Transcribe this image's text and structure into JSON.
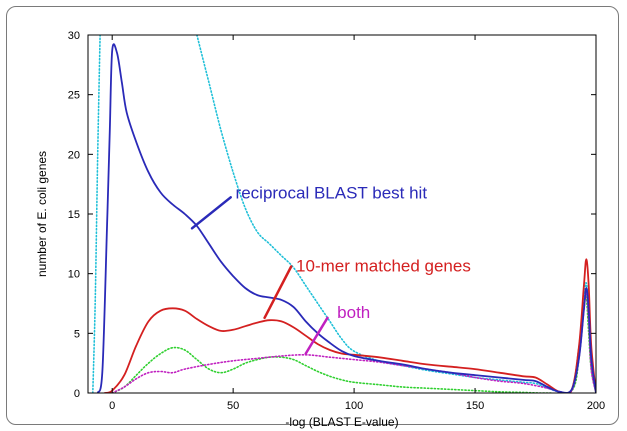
{
  "chart_data": {
    "type": "line",
    "title": "",
    "xlabel": "-log (BLAST E-value)",
    "ylabel": "number of E. coli genes",
    "xlim": [
      -10,
      200
    ],
    "ylim": [
      0,
      30
    ],
    "xticks": [
      "0",
      "50",
      "100",
      "150",
      "200"
    ],
    "yticks": [
      "0",
      "5",
      "10",
      "15",
      "20",
      "25",
      "30"
    ],
    "xtick_values": [
      0,
      50,
      100,
      150,
      200
    ],
    "ytick_values": [
      0,
      5,
      10,
      15,
      20,
      25,
      30
    ],
    "grid": false,
    "series": [
      {
        "name": "reciprocal BLAST best hit",
        "color": "#2a2ab8",
        "style": "solid",
        "points": [
          [
            -6,
            0
          ],
          [
            -4,
            2
          ],
          [
            -2,
            15
          ],
          [
            -1,
            22
          ],
          [
            0,
            28.7
          ],
          [
            2,
            28.5
          ],
          [
            4,
            26
          ],
          [
            6,
            23.5
          ],
          [
            10,
            21
          ],
          [
            15,
            18.5
          ],
          [
            20,
            16.8
          ],
          [
            25,
            15.8
          ],
          [
            30,
            15
          ],
          [
            35,
            14
          ],
          [
            40,
            12.5
          ],
          [
            45,
            11
          ],
          [
            50,
            9.8
          ],
          [
            55,
            8.8
          ],
          [
            60,
            8.2
          ],
          [
            65,
            8
          ],
          [
            70,
            7.8
          ],
          [
            75,
            7.2
          ],
          [
            80,
            6
          ],
          [
            85,
            5
          ],
          [
            90,
            4.2
          ],
          [
            95,
            3.5
          ],
          [
            100,
            3.1
          ],
          [
            110,
            2.7
          ],
          [
            120,
            2.4
          ],
          [
            130,
            2.0
          ],
          [
            140,
            1.7
          ],
          [
            150,
            1.5
          ],
          [
            160,
            1.3
          ],
          [
            170,
            1.1
          ],
          [
            175,
            1.0
          ],
          [
            180,
            0.5
          ],
          [
            185,
            0.1
          ],
          [
            190,
            0.3
          ],
          [
            193,
            3
          ],
          [
            195,
            7
          ],
          [
            196,
            8.8
          ],
          [
            197,
            7
          ],
          [
            198,
            3
          ],
          [
            200,
            0
          ]
        ]
      },
      {
        "name": "10-mer matched genes",
        "color": "#d42020",
        "style": "solid",
        "points": [
          [
            -3,
            0
          ],
          [
            0,
            0.2
          ],
          [
            5,
            1.5
          ],
          [
            10,
            4
          ],
          [
            15,
            6
          ],
          [
            20,
            6.9
          ],
          [
            25,
            7.1
          ],
          [
            30,
            6.9
          ],
          [
            35,
            6.2
          ],
          [
            40,
            5.6
          ],
          [
            45,
            5.2
          ],
          [
            50,
            5.3
          ],
          [
            55,
            5.6
          ],
          [
            60,
            5.9
          ],
          [
            65,
            6.1
          ],
          [
            70,
            6.0
          ],
          [
            75,
            5.5
          ],
          [
            80,
            4.8
          ],
          [
            85,
            4.1
          ],
          [
            90,
            3.6
          ],
          [
            95,
            3.3
          ],
          [
            100,
            3.2
          ],
          [
            110,
            3.0
          ],
          [
            120,
            2.7
          ],
          [
            130,
            2.4
          ],
          [
            140,
            2.2
          ],
          [
            150,
            2.0
          ],
          [
            160,
            1.7
          ],
          [
            170,
            1.4
          ],
          [
            175,
            1.3
          ],
          [
            180,
            0.7
          ],
          [
            185,
            0.1
          ],
          [
            190,
            0.3
          ],
          [
            193,
            4
          ],
          [
            195,
            9
          ],
          [
            196,
            11.2
          ],
          [
            197,
            9
          ],
          [
            198,
            4
          ],
          [
            200,
            0
          ]
        ]
      },
      {
        "name": "both",
        "color": "#c020c0",
        "style": "dotted",
        "points": [
          [
            0,
            0
          ],
          [
            5,
            0.5
          ],
          [
            10,
            1.2
          ],
          [
            15,
            1.7
          ],
          [
            20,
            1.8
          ],
          [
            25,
            1.7
          ],
          [
            30,
            2.0
          ],
          [
            40,
            2.4
          ],
          [
            50,
            2.7
          ],
          [
            60,
            2.9
          ],
          [
            70,
            3.1
          ],
          [
            80,
            3.2
          ],
          [
            90,
            3.0
          ],
          [
            100,
            2.8
          ],
          [
            110,
            2.6
          ],
          [
            120,
            2.3
          ],
          [
            130,
            2.0
          ],
          [
            140,
            1.7
          ],
          [
            150,
            1.3
          ],
          [
            160,
            1.0
          ],
          [
            170,
            0.8
          ],
          [
            180,
            0.4
          ],
          [
            185,
            0.1
          ],
          [
            190,
            0.2
          ],
          [
            193,
            3
          ],
          [
            195,
            7
          ],
          [
            196,
            8.5
          ],
          [
            197,
            6
          ],
          [
            198,
            2
          ],
          [
            200,
            0
          ]
        ]
      },
      {
        "name": "",
        "color": "#20c0d8",
        "style": "dotted",
        "points": [
          [
            -8,
            0
          ],
          [
            -7,
            8
          ],
          [
            -6,
            20
          ],
          [
            -5,
            30
          ]
        ]
      },
      {
        "name": "",
        "color": "#20c0d8",
        "style": "dotted",
        "points": [
          [
            35,
            30
          ],
          [
            40,
            26
          ],
          [
            45,
            22
          ],
          [
            50,
            18.5
          ],
          [
            55,
            15.5
          ],
          [
            60,
            13.5
          ],
          [
            65,
            12.5
          ],
          [
            70,
            11.5
          ],
          [
            75,
            10.5
          ],
          [
            80,
            9.0
          ],
          [
            85,
            7.5
          ],
          [
            90,
            6.0
          ],
          [
            95,
            4.5
          ],
          [
            100,
            3.5
          ],
          [
            110,
            2.7
          ],
          [
            120,
            2.3
          ],
          [
            130,
            1.9
          ],
          [
            140,
            1.6
          ],
          [
            150,
            1.3
          ],
          [
            160,
            1.1
          ],
          [
            170,
            0.9
          ],
          [
            175,
            0.8
          ],
          [
            180,
            0.4
          ],
          [
            185,
            0.1
          ],
          [
            190,
            0.3
          ],
          [
            193,
            4
          ],
          [
            195,
            8
          ],
          [
            196,
            9.2
          ],
          [
            197,
            7
          ],
          [
            198,
            3
          ],
          [
            200,
            0
          ]
        ]
      },
      {
        "name": "",
        "color": "#30d030",
        "style": "dotted",
        "points": [
          [
            0,
            0
          ],
          [
            5,
            0.5
          ],
          [
            10,
            1.5
          ],
          [
            15,
            2.5
          ],
          [
            20,
            3.3
          ],
          [
            25,
            3.8
          ],
          [
            30,
            3.6
          ],
          [
            35,
            2.8
          ],
          [
            40,
            2.0
          ],
          [
            45,
            1.7
          ],
          [
            50,
            2.0
          ],
          [
            55,
            2.5
          ],
          [
            60,
            2.8
          ],
          [
            65,
            3.0
          ],
          [
            70,
            3.0
          ],
          [
            75,
            2.8
          ],
          [
            80,
            2.3
          ],
          [
            85,
            1.8
          ],
          [
            90,
            1.4
          ],
          [
            95,
            1.1
          ],
          [
            100,
            0.9
          ],
          [
            110,
            0.7
          ],
          [
            120,
            0.5
          ],
          [
            130,
            0.4
          ],
          [
            140,
            0.3
          ],
          [
            150,
            0.2
          ],
          [
            160,
            0.1
          ],
          [
            170,
            0.05
          ],
          [
            180,
            0
          ],
          [
            190,
            0.2
          ],
          [
            193,
            3
          ],
          [
            195,
            7
          ],
          [
            196,
            8
          ],
          [
            197,
            5
          ],
          [
            198,
            2
          ],
          [
            200,
            0
          ]
        ]
      }
    ],
    "annotations": [
      {
        "text": "reciprocal BLAST best hit",
        "color": "#2a2ab8",
        "text_x": 51,
        "text_y": 16.3,
        "line": [
          [
            33,
            13.8
          ],
          [
            49,
            16.4
          ]
        ]
      },
      {
        "text": "10-mer matched genes",
        "color": "#d42020",
        "text_x": 76,
        "text_y": 10.2,
        "line": [
          [
            63,
            6.3
          ],
          [
            74,
            10.6
          ]
        ]
      },
      {
        "text": "both",
        "color": "#c020c0",
        "text_x": 93,
        "text_y": 6.3,
        "line": [
          [
            80,
            3.3
          ],
          [
            89,
            6.3
          ]
        ]
      }
    ]
  }
}
